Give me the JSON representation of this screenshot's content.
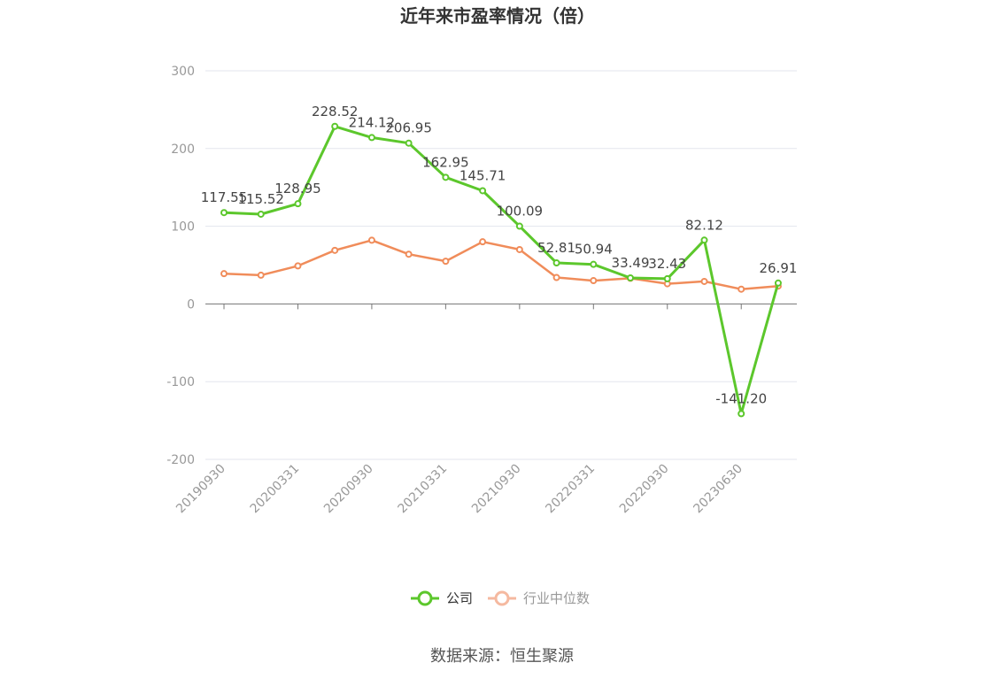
{
  "chart_data": {
    "type": "line",
    "title": "近年来市盈率情况（倍）",
    "source": "数据来源：恒生聚源",
    "xlabel": "",
    "ylabel": "",
    "ylim": [
      -200,
      300
    ],
    "yticks": [
      "300",
      "200",
      "100",
      "0",
      "-100",
      "-200"
    ],
    "x_tick_labels": [
      "20190930",
      "20200331",
      "20200930",
      "20210331",
      "20210930",
      "20220331",
      "20220930",
      "20230630"
    ],
    "grid": true,
    "legend_placement": "bottom-center",
    "series": [
      {
        "name": "公司",
        "color": "#5cc72c",
        "values": [
          117.55,
          115.52,
          128.95,
          228.52,
          214.12,
          206.95,
          162.95,
          145.71,
          100.09,
          52.81,
          50.94,
          33.49,
          32.43,
          82.12,
          -141.2,
          26.91
        ],
        "labels": [
          "117.55",
          "115.52",
          "128.95",
          "228.52",
          "214.12",
          "206.95",
          "162.95",
          "145.71",
          "100.09",
          "52.81",
          "50.94",
          "33.49",
          "32.43",
          "82.12",
          "-141.20",
          "26.91"
        ]
      },
      {
        "name": "行业中位数",
        "color": "#f08c5a",
        "values": [
          39,
          37,
          49,
          69,
          82,
          64,
          55,
          80,
          70,
          34,
          30,
          33,
          26,
          29,
          19,
          23
        ]
      }
    ]
  }
}
